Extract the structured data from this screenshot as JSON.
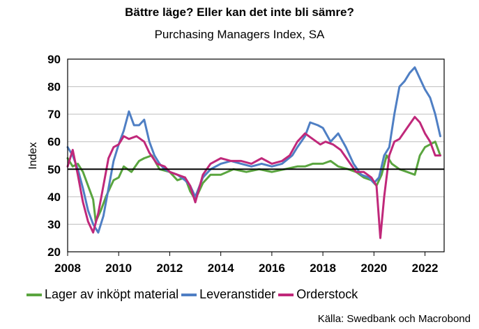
{
  "chart_data": {
    "type": "line",
    "title": "Bättre läge? Eller kan det inte bli sämre?",
    "subtitle": "Purchasing Managers Index, SA",
    "ylabel": "Index",
    "xlabel": "",
    "ylim": [
      20,
      90
    ],
    "xlim": [
      2008.0,
      2022.75
    ],
    "yticks": [
      20,
      30,
      40,
      50,
      60,
      70,
      80,
      90
    ],
    "xticks": [
      "2008",
      "2010",
      "2012",
      "2014",
      "2016",
      "2018",
      "2020",
      "2022"
    ],
    "reference_line": 50,
    "grid": "horizontal",
    "legend_position": "bottom",
    "source": "Källa: Swedbank och Macrobond",
    "series": [
      {
        "name": "Lager av inköpt material",
        "color": "#5aa53f",
        "x": [
          2008.0,
          2008.2,
          2008.4,
          2008.6,
          2008.8,
          2009.0,
          2009.1,
          2009.3,
          2009.5,
          2009.8,
          2010.0,
          2010.2,
          2010.5,
          2010.8,
          2011.0,
          2011.3,
          2011.6,
          2012.0,
          2012.3,
          2012.6,
          2012.8,
          2013.0,
          2013.3,
          2013.6,
          2014.0,
          2014.5,
          2015.0,
          2015.5,
          2016.0,
          2016.5,
          2017.0,
          2017.3,
          2017.6,
          2018.0,
          2018.3,
          2018.6,
          2019.0,
          2019.3,
          2019.6,
          2019.9,
          2020.1,
          2020.3,
          2020.5,
          2020.7,
          2021.0,
          2021.3,
          2021.6,
          2021.8,
          2022.0,
          2022.2,
          2022.4,
          2022.6
        ],
        "values": [
          54,
          51,
          52,
          49,
          44,
          39,
          31,
          35,
          40,
          46,
          47,
          51,
          49,
          53,
          54,
          55,
          50,
          49,
          46,
          47,
          42,
          39,
          45,
          48,
          48,
          50,
          49,
          50,
          49,
          50,
          51,
          51,
          52,
          52,
          53,
          51,
          50,
          49,
          47,
          46,
          44,
          48,
          55,
          52,
          50,
          49,
          48,
          55,
          58,
          59,
          60,
          55
        ]
      },
      {
        "name": "Leveranstider",
        "color": "#4f7fc4",
        "x": [
          2008.0,
          2008.2,
          2008.4,
          2008.6,
          2008.8,
          2009.0,
          2009.2,
          2009.4,
          2009.6,
          2009.8,
          2010.0,
          2010.2,
          2010.4,
          2010.6,
          2010.8,
          2011.0,
          2011.2,
          2011.4,
          2011.6,
          2011.8,
          2012.0,
          2012.3,
          2012.6,
          2012.8,
          2013.0,
          2013.3,
          2013.6,
          2014.0,
          2014.4,
          2014.8,
          2015.2,
          2015.6,
          2016.0,
          2016.4,
          2016.8,
          2017.0,
          2017.3,
          2017.5,
          2017.8,
          2018.0,
          2018.3,
          2018.6,
          2018.9,
          2019.2,
          2019.5,
          2019.8,
          2020.0,
          2020.2,
          2020.4,
          2020.6,
          2020.8,
          2021.0,
          2021.2,
          2021.4,
          2021.6,
          2021.8,
          2022.0,
          2022.2,
          2022.4,
          2022.6
        ],
        "values": [
          58,
          55,
          50,
          43,
          35,
          30,
          27,
          33,
          43,
          53,
          59,
          64,
          71,
          66,
          66,
          68,
          60,
          55,
          52,
          50,
          49,
          48,
          46,
          44,
          40,
          47,
          50,
          52,
          53,
          52,
          51,
          52,
          51,
          52,
          55,
          58,
          62,
          67,
          66,
          65,
          60,
          63,
          58,
          52,
          48,
          47,
          45,
          47,
          55,
          58,
          70,
          80,
          82,
          85,
          87,
          83,
          79,
          76,
          70,
          62
        ]
      },
      {
        "name": "Orderstock",
        "color": "#c0287a",
        "x": [
          2008.0,
          2008.2,
          2008.4,
          2008.6,
          2008.8,
          2009.0,
          2009.2,
          2009.4,
          2009.6,
          2009.8,
          2010.0,
          2010.2,
          2010.4,
          2010.7,
          2011.0,
          2011.2,
          2011.5,
          2011.8,
          2012.0,
          2012.3,
          2012.6,
          2012.8,
          2013.0,
          2013.3,
          2013.6,
          2014.0,
          2014.4,
          2014.8,
          2015.2,
          2015.6,
          2016.0,
          2016.4,
          2016.7,
          2017.0,
          2017.3,
          2017.6,
          2017.9,
          2018.1,
          2018.4,
          2018.7,
          2019.0,
          2019.3,
          2019.6,
          2019.9,
          2020.1,
          2020.25,
          2020.4,
          2020.6,
          2020.8,
          2021.0,
          2021.3,
          2021.6,
          2021.8,
          2022.0,
          2022.2,
          2022.4,
          2022.6
        ],
        "values": [
          51,
          57,
          48,
          38,
          31,
          27,
          34,
          44,
          54,
          58,
          59,
          62,
          61,
          62,
          60,
          56,
          52,
          51,
          49,
          48,
          47,
          44,
          38,
          48,
          52,
          54,
          53,
          53,
          52,
          54,
          52,
          53,
          55,
          60,
          63,
          61,
          59,
          60,
          59,
          57,
          53,
          49,
          49,
          47,
          44,
          25,
          40,
          55,
          60,
          61,
          65,
          69,
          67,
          63,
          60,
          55,
          55
        ]
      }
    ]
  }
}
